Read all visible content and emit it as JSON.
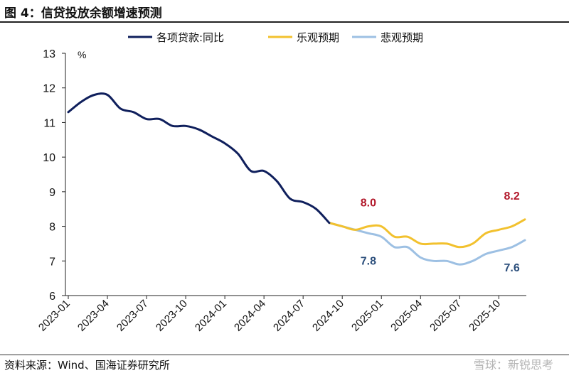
{
  "header": {
    "title": "图 4：信贷投放余额增速预测"
  },
  "footer": {
    "source": "资料来源：Wind、国海证券研究所",
    "watermark": "雪球：新锐思考"
  },
  "chart_data": {
    "type": "line",
    "unit_label": "%",
    "ylim": [
      6,
      13
    ],
    "yticks": [
      6,
      7,
      8,
      9,
      10,
      11,
      12,
      13
    ],
    "xrange": [
      "2023-01",
      "2025-12"
    ],
    "xticks": [
      "2023-01",
      "2023-04",
      "2023-07",
      "2023-10",
      "2024-01",
      "2024-04",
      "2024-07",
      "2024-10",
      "2025-01",
      "2025-04",
      "2025-07",
      "2025-10"
    ],
    "grid": false,
    "legend_position": "top",
    "series": [
      {
        "name": "各项贷款:同比",
        "color": "#0f1f5c",
        "points": [
          [
            "2023-01",
            11.3
          ],
          [
            "2023-02",
            11.6
          ],
          [
            "2023-03",
            11.8
          ],
          [
            "2023-04",
            11.8
          ],
          [
            "2023-05",
            11.4
          ],
          [
            "2023-06",
            11.3
          ],
          [
            "2023-07",
            11.1
          ],
          [
            "2023-08",
            11.1
          ],
          [
            "2023-09",
            10.9
          ],
          [
            "2023-10",
            10.9
          ],
          [
            "2023-11",
            10.8
          ],
          [
            "2023-12",
            10.6
          ],
          [
            "2024-01",
            10.4
          ],
          [
            "2024-02",
            10.1
          ],
          [
            "2024-03",
            9.6
          ],
          [
            "2024-04",
            9.6
          ],
          [
            "2024-05",
            9.3
          ],
          [
            "2024-06",
            8.8
          ],
          [
            "2024-07",
            8.7
          ],
          [
            "2024-08",
            8.5
          ],
          [
            "2024-09",
            8.1
          ]
        ]
      },
      {
        "name": "乐观预期",
        "color": "#f2c12e",
        "points": [
          [
            "2024-09",
            8.1
          ],
          [
            "2024-10",
            8.0
          ],
          [
            "2024-11",
            7.9
          ],
          [
            "2024-12",
            8.0
          ],
          [
            "2025-01",
            8.0
          ],
          [
            "2025-02",
            7.7
          ],
          [
            "2025-03",
            7.7
          ],
          [
            "2025-04",
            7.5
          ],
          [
            "2025-05",
            7.5
          ],
          [
            "2025-06",
            7.5
          ],
          [
            "2025-07",
            7.4
          ],
          [
            "2025-08",
            7.5
          ],
          [
            "2025-09",
            7.8
          ],
          [
            "2025-10",
            7.9
          ],
          [
            "2025-11",
            8.0
          ],
          [
            "2025-12",
            8.2
          ]
        ]
      },
      {
        "name": "悲观预期",
        "color": "#9dc0e3",
        "points": [
          [
            "2024-09",
            8.1
          ],
          [
            "2024-10",
            8.0
          ],
          [
            "2024-11",
            7.9
          ],
          [
            "2024-12",
            7.8
          ],
          [
            "2025-01",
            7.7
          ],
          [
            "2025-02",
            7.4
          ],
          [
            "2025-03",
            7.4
          ],
          [
            "2025-04",
            7.1
          ],
          [
            "2025-05",
            7.0
          ],
          [
            "2025-06",
            7.0
          ],
          [
            "2025-07",
            6.9
          ],
          [
            "2025-08",
            7.0
          ],
          [
            "2025-09",
            7.2
          ],
          [
            "2025-10",
            7.3
          ],
          [
            "2025-11",
            7.4
          ],
          [
            "2025-12",
            7.6
          ]
        ]
      }
    ],
    "annotations": [
      {
        "text": "8.0",
        "x": "2024-12",
        "y": 8.0,
        "color": "#b2182b",
        "place": "above"
      },
      {
        "text": "7.8",
        "x": "2024-12",
        "y": 7.8,
        "color": "#2c4f7c",
        "place": "below"
      },
      {
        "text": "8.2",
        "x": "2025-11",
        "y": 8.2,
        "color": "#b2182b",
        "place": "above"
      },
      {
        "text": "7.6",
        "x": "2025-11",
        "y": 7.6,
        "color": "#2c4f7c",
        "place": "below"
      }
    ]
  }
}
